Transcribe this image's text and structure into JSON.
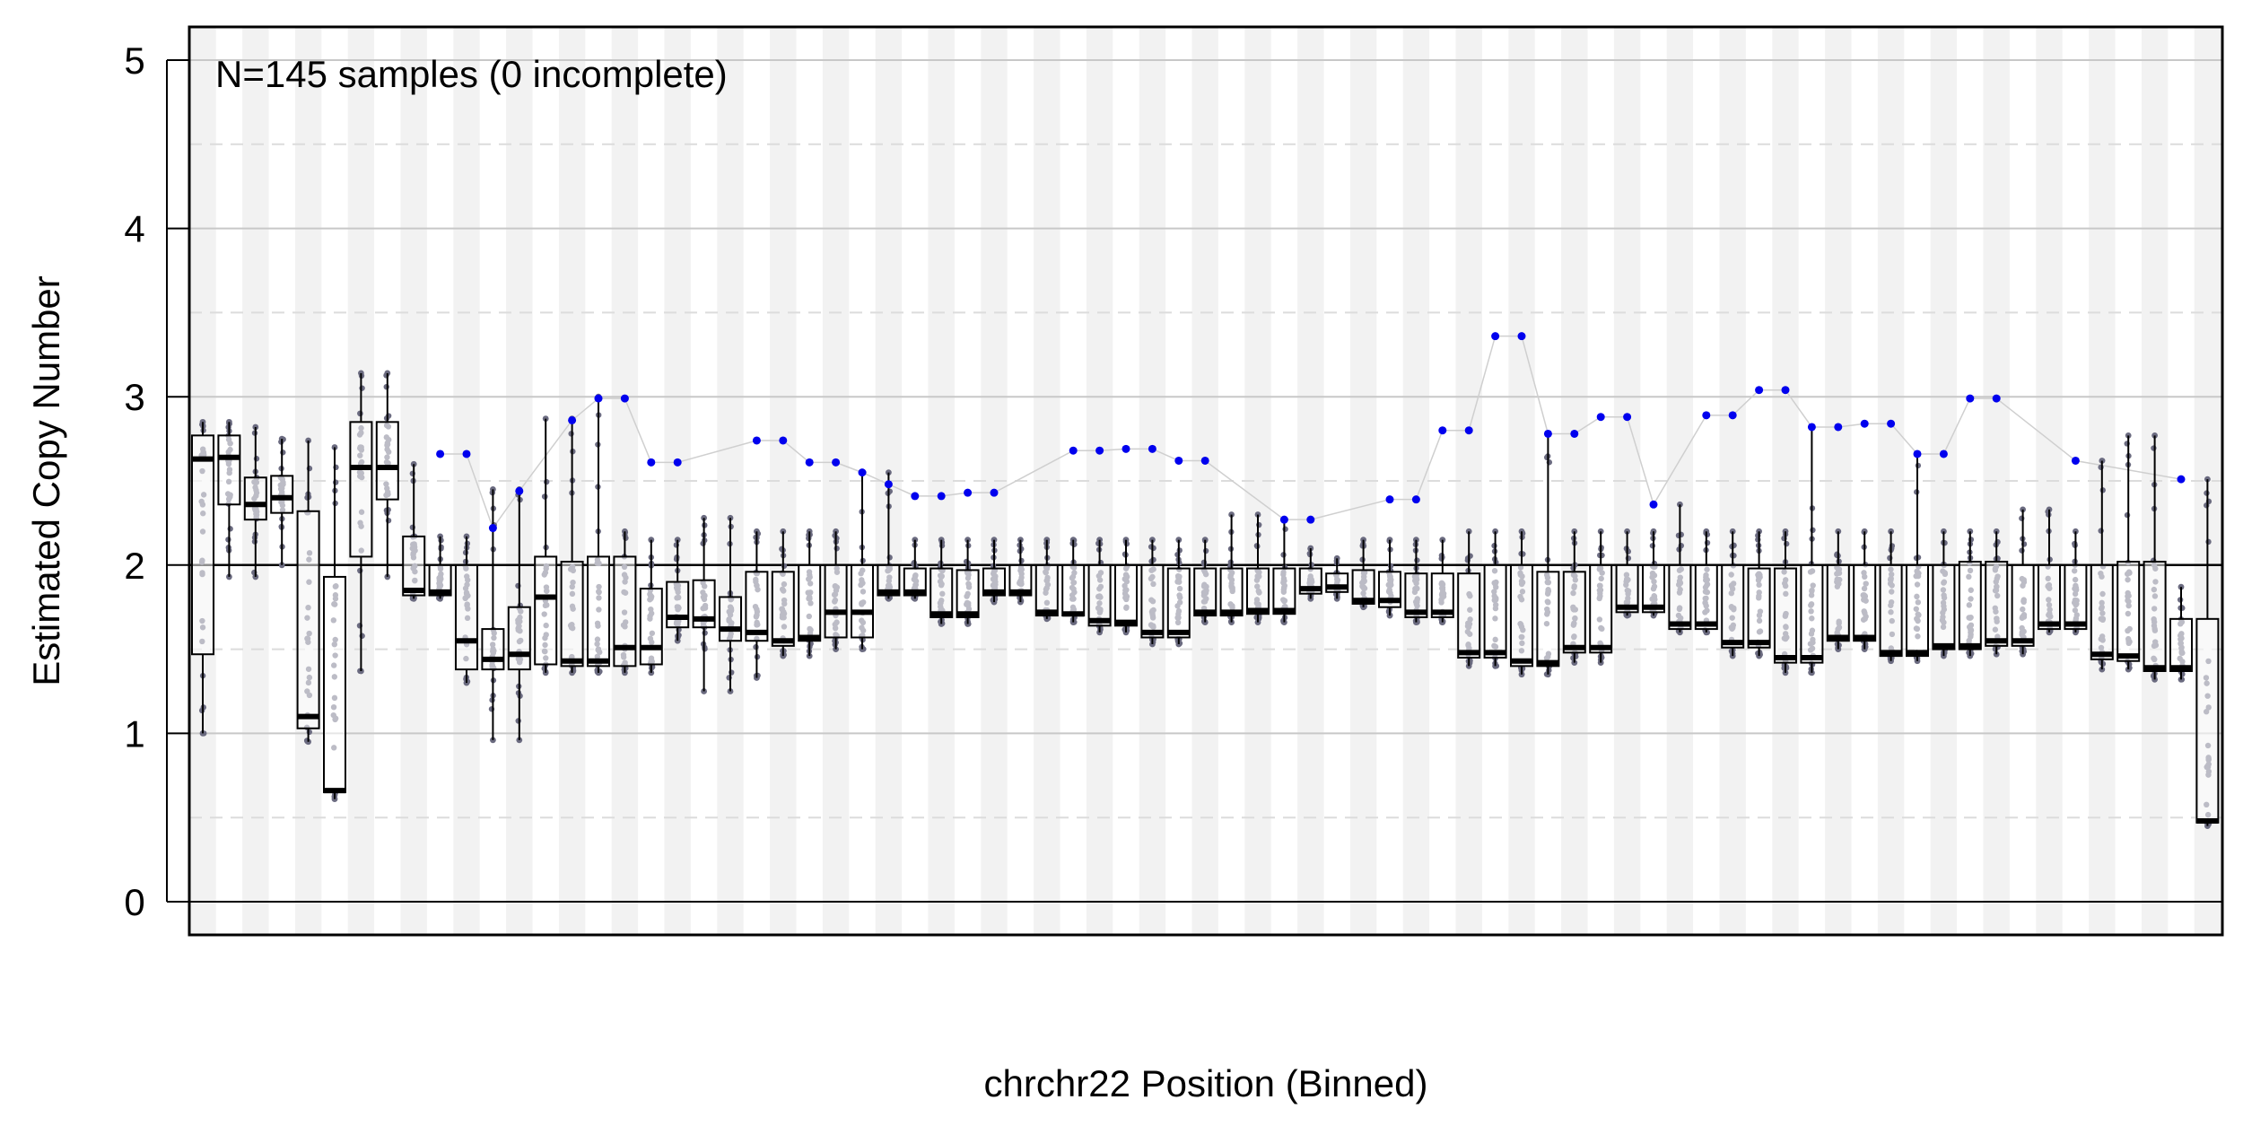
{
  "chart_data": {
    "type": "boxplot",
    "title": "",
    "annotation": "N=145 samples (0 incomplete)",
    "xlabel": "chrchr22 Position (Binned)",
    "ylabel": "Estimated Copy Number",
    "ylim": [
      -0.2,
      5.2
    ],
    "yticks": [
      "0",
      "1",
      "2",
      "3",
      "4",
      "5"
    ],
    "reference_line": 2,
    "grid": true,
    "colors": {
      "stripe": "#f2f2f2",
      "grid_major": "#c8c8c8",
      "grid_minor": "#dcdcdc",
      "point": "#6b6b80",
      "highlight": "#0000ee",
      "trace": "#cfcfcf",
      "box_fill": "#ffffff",
      "axis": "#000000"
    },
    "bins": [
      {
        "q1": 1.47,
        "med": 2.63,
        "q3": 2.77,
        "lo": 1.0,
        "hi": 2.85,
        "ol": null
      },
      {
        "q1": 2.36,
        "med": 2.64,
        "q3": 2.77,
        "lo": 1.93,
        "hi": 2.85,
        "ol": null
      },
      {
        "q1": 2.27,
        "med": 2.36,
        "q3": 2.52,
        "lo": 1.93,
        "hi": 2.82,
        "ol": null
      },
      {
        "q1": 2.31,
        "med": 2.4,
        "q3": 2.53,
        "lo": 2.0,
        "hi": 2.75,
        "ol": null
      },
      {
        "q1": 1.03,
        "med": 1.1,
        "q3": 2.32,
        "lo": 0.95,
        "hi": 2.74,
        "ol": null
      },
      {
        "q1": 0.65,
        "med": 0.66,
        "q3": 1.93,
        "lo": 0.61,
        "hi": 2.7,
        "ol": null
      },
      {
        "q1": 2.05,
        "med": 2.58,
        "q3": 2.85,
        "lo": 1.37,
        "hi": 3.14,
        "ol": null
      },
      {
        "q1": 2.39,
        "med": 2.58,
        "q3": 2.85,
        "lo": 1.93,
        "hi": 3.14,
        "ol": null
      },
      {
        "q1": 1.82,
        "med": 1.85,
        "q3": 2.17,
        "lo": 1.8,
        "hi": 2.6,
        "ol": null
      },
      {
        "q1": 1.82,
        "med": 1.84,
        "q3": 2.0,
        "lo": 1.8,
        "hi": 2.17,
        "ol": 2.66
      },
      {
        "q1": 1.38,
        "med": 1.55,
        "q3": 2.0,
        "lo": 1.3,
        "hi": 2.17,
        "ol": 2.66
      },
      {
        "q1": 1.38,
        "med": 1.44,
        "q3": 1.62,
        "lo": 0.96,
        "hi": 2.45,
        "ol": 2.22
      },
      {
        "q1": 1.38,
        "med": 1.47,
        "q3": 1.75,
        "lo": 0.96,
        "hi": 2.45,
        "ol": 2.44
      },
      {
        "q1": 1.41,
        "med": 1.81,
        "q3": 2.05,
        "lo": 1.36,
        "hi": 2.87,
        "ol": null
      },
      {
        "q1": 1.4,
        "med": 1.43,
        "q3": 2.02,
        "lo": 1.36,
        "hi": 2.87,
        "ol": 2.86
      },
      {
        "q1": 1.4,
        "med": 1.43,
        "q3": 2.05,
        "lo": 1.36,
        "hi": 3.0,
        "ol": 2.99
      },
      {
        "q1": 1.4,
        "med": 1.51,
        "q3": 2.05,
        "lo": 1.36,
        "hi": 2.2,
        "ol": 2.99
      },
      {
        "q1": 1.41,
        "med": 1.51,
        "q3": 1.86,
        "lo": 1.36,
        "hi": 2.15,
        "ol": 2.61
      },
      {
        "q1": 1.63,
        "med": 1.69,
        "q3": 1.9,
        "lo": 1.55,
        "hi": 2.15,
        "ol": 2.61
      },
      {
        "q1": 1.63,
        "med": 1.68,
        "q3": 1.91,
        "lo": 1.25,
        "hi": 2.28,
        "ol": null
      },
      {
        "q1": 1.55,
        "med": 1.62,
        "q3": 1.81,
        "lo": 1.25,
        "hi": 2.28,
        "ol": null
      },
      {
        "q1": 1.55,
        "med": 1.6,
        "q3": 1.96,
        "lo": 1.33,
        "hi": 2.2,
        "ol": 2.74
      },
      {
        "q1": 1.52,
        "med": 1.55,
        "q3": 1.96,
        "lo": 1.46,
        "hi": 2.2,
        "ol": 2.74
      },
      {
        "q1": 1.55,
        "med": 1.57,
        "q3": 2.0,
        "lo": 1.46,
        "hi": 2.2,
        "ol": 2.61
      },
      {
        "q1": 1.57,
        "med": 1.72,
        "q3": 2.0,
        "lo": 1.5,
        "hi": 2.2,
        "ol": 2.61
      },
      {
        "q1": 1.57,
        "med": 1.72,
        "q3": 2.0,
        "lo": 1.5,
        "hi": 2.55,
        "ol": 2.55
      },
      {
        "q1": 1.82,
        "med": 1.84,
        "q3": 2.0,
        "lo": 1.8,
        "hi": 2.55,
        "ol": 2.48
      },
      {
        "q1": 1.82,
        "med": 1.84,
        "q3": 1.98,
        "lo": 1.8,
        "hi": 2.15,
        "ol": 2.41
      },
      {
        "q1": 1.69,
        "med": 1.71,
        "q3": 1.98,
        "lo": 1.65,
        "hi": 2.15,
        "ol": 2.41
      },
      {
        "q1": 1.69,
        "med": 1.71,
        "q3": 1.97,
        "lo": 1.65,
        "hi": 2.15,
        "ol": 2.43
      },
      {
        "q1": 1.82,
        "med": 1.84,
        "q3": 1.98,
        "lo": 1.78,
        "hi": 2.15,
        "ol": 2.43
      },
      {
        "q1": 1.82,
        "med": 1.84,
        "q3": 2.0,
        "lo": 1.78,
        "hi": 2.15,
        "ol": null
      },
      {
        "q1": 1.7,
        "med": 1.72,
        "q3": 2.0,
        "lo": 1.68,
        "hi": 2.15,
        "ol": null
      },
      {
        "q1": 1.7,
        "med": 1.71,
        "q3": 2.0,
        "lo": 1.66,
        "hi": 2.15,
        "ol": 2.68
      },
      {
        "q1": 1.64,
        "med": 1.67,
        "q3": 2.0,
        "lo": 1.6,
        "hi": 2.15,
        "ol": 2.68
      },
      {
        "q1": 1.64,
        "med": 1.66,
        "q3": 2.0,
        "lo": 1.6,
        "hi": 2.15,
        "ol": 2.69
      },
      {
        "q1": 1.57,
        "med": 1.6,
        "q3": 2.0,
        "lo": 1.53,
        "hi": 2.15,
        "ol": 2.69
      },
      {
        "q1": 1.57,
        "med": 1.6,
        "q3": 1.98,
        "lo": 1.53,
        "hi": 2.15,
        "ol": 2.62
      },
      {
        "q1": 1.7,
        "med": 1.72,
        "q3": 1.98,
        "lo": 1.66,
        "hi": 2.15,
        "ol": 2.62
      },
      {
        "q1": 1.7,
        "med": 1.72,
        "q3": 1.98,
        "lo": 1.66,
        "hi": 2.3,
        "ol": null
      },
      {
        "q1": 1.71,
        "med": 1.73,
        "q3": 1.98,
        "lo": 1.66,
        "hi": 2.3,
        "ol": null
      },
      {
        "q1": 1.71,
        "med": 1.73,
        "q3": 1.98,
        "lo": 1.66,
        "hi": 2.27,
        "ol": 2.27
      },
      {
        "q1": 1.83,
        "med": 1.86,
        "q3": 1.98,
        "lo": 1.8,
        "hi": 2.1,
        "ol": 2.27
      },
      {
        "q1": 1.84,
        "med": 1.87,
        "q3": 1.95,
        "lo": 1.8,
        "hi": 2.04,
        "ol": null
      },
      {
        "q1": 1.77,
        "med": 1.79,
        "q3": 1.97,
        "lo": 1.75,
        "hi": 2.15,
        "ol": null
      },
      {
        "q1": 1.75,
        "med": 1.79,
        "q3": 1.96,
        "lo": 1.7,
        "hi": 2.15,
        "ol": 2.39
      },
      {
        "q1": 1.69,
        "med": 1.72,
        "q3": 1.95,
        "lo": 1.66,
        "hi": 2.15,
        "ol": 2.39
      },
      {
        "q1": 1.69,
        "med": 1.72,
        "q3": 1.95,
        "lo": 1.66,
        "hi": 2.15,
        "ol": 2.8
      },
      {
        "q1": 1.45,
        "med": 1.48,
        "q3": 1.95,
        "lo": 1.4,
        "hi": 2.2,
        "ol": 2.8
      },
      {
        "q1": 1.45,
        "med": 1.48,
        "q3": 2.0,
        "lo": 1.4,
        "hi": 2.2,
        "ol": 3.36
      },
      {
        "q1": 1.4,
        "med": 1.43,
        "q3": 2.0,
        "lo": 1.35,
        "hi": 2.2,
        "ol": 3.36
      },
      {
        "q1": 1.4,
        "med": 1.42,
        "q3": 1.96,
        "lo": 1.35,
        "hi": 2.78,
        "ol": 2.78
      },
      {
        "q1": 1.48,
        "med": 1.51,
        "q3": 1.96,
        "lo": 1.42,
        "hi": 2.2,
        "ol": 2.78
      },
      {
        "q1": 1.48,
        "med": 1.51,
        "q3": 2.0,
        "lo": 1.42,
        "hi": 2.2,
        "ol": 2.88
      },
      {
        "q1": 1.72,
        "med": 1.75,
        "q3": 2.0,
        "lo": 1.7,
        "hi": 2.2,
        "ol": 2.88
      },
      {
        "q1": 1.72,
        "med": 1.75,
        "q3": 2.0,
        "lo": 1.7,
        "hi": 2.2,
        "ol": 2.36
      },
      {
        "q1": 1.62,
        "med": 1.65,
        "q3": 2.0,
        "lo": 1.6,
        "hi": 2.36,
        "ol": null
      },
      {
        "q1": 1.62,
        "med": 1.65,
        "q3": 2.0,
        "lo": 1.6,
        "hi": 2.2,
        "ol": 2.89
      },
      {
        "q1": 1.51,
        "med": 1.54,
        "q3": 2.0,
        "lo": 1.46,
        "hi": 2.2,
        "ol": 2.89
      },
      {
        "q1": 1.51,
        "med": 1.54,
        "q3": 1.98,
        "lo": 1.46,
        "hi": 2.2,
        "ol": 3.04
      },
      {
        "q1": 1.42,
        "med": 1.45,
        "q3": 1.98,
        "lo": 1.36,
        "hi": 2.2,
        "ol": 3.04
      },
      {
        "q1": 1.42,
        "med": 1.45,
        "q3": 2.0,
        "lo": 1.36,
        "hi": 2.82,
        "ol": 2.82
      },
      {
        "q1": 1.55,
        "med": 1.57,
        "q3": 2.0,
        "lo": 1.5,
        "hi": 2.2,
        "ol": 2.82
      },
      {
        "q1": 1.55,
        "med": 1.57,
        "q3": 2.0,
        "lo": 1.5,
        "hi": 2.2,
        "ol": 2.84
      },
      {
        "q1": 1.46,
        "med": 1.48,
        "q3": 2.0,
        "lo": 1.43,
        "hi": 2.2,
        "ol": 2.84
      },
      {
        "q1": 1.46,
        "med": 1.48,
        "q3": 2.0,
        "lo": 1.43,
        "hi": 2.66,
        "ol": 2.66
      },
      {
        "q1": 1.5,
        "med": 1.52,
        "q3": 2.0,
        "lo": 1.46,
        "hi": 2.2,
        "ol": 2.66
      },
      {
        "q1": 1.5,
        "med": 1.52,
        "q3": 2.02,
        "lo": 1.46,
        "hi": 2.2,
        "ol": 2.99
      },
      {
        "q1": 1.52,
        "med": 1.55,
        "q3": 2.02,
        "lo": 1.47,
        "hi": 2.2,
        "ol": 2.99
      },
      {
        "q1": 1.52,
        "med": 1.55,
        "q3": 2.0,
        "lo": 1.47,
        "hi": 2.33,
        "ol": null
      },
      {
        "q1": 1.62,
        "med": 1.65,
        "q3": 2.0,
        "lo": 1.6,
        "hi": 2.33,
        "ol": null
      },
      {
        "q1": 1.62,
        "med": 1.65,
        "q3": 2.0,
        "lo": 1.6,
        "hi": 2.2,
        "ol": 2.62
      },
      {
        "q1": 1.44,
        "med": 1.47,
        "q3": 2.0,
        "lo": 1.38,
        "hi": 2.62,
        "ol": null
      },
      {
        "q1": 1.43,
        "med": 1.46,
        "q3": 2.02,
        "lo": 1.38,
        "hi": 2.77,
        "ol": null
      },
      {
        "q1": 1.37,
        "med": 1.39,
        "q3": 2.02,
        "lo": 1.32,
        "hi": 2.77,
        "ol": null
      },
      {
        "q1": 1.37,
        "med": 1.39,
        "q3": 1.68,
        "lo": 1.32,
        "hi": 1.87,
        "ol": 2.51
      },
      {
        "q1": 0.47,
        "med": 0.48,
        "q3": 1.68,
        "lo": 0.45,
        "hi": 2.51,
        "ol": null
      }
    ]
  }
}
